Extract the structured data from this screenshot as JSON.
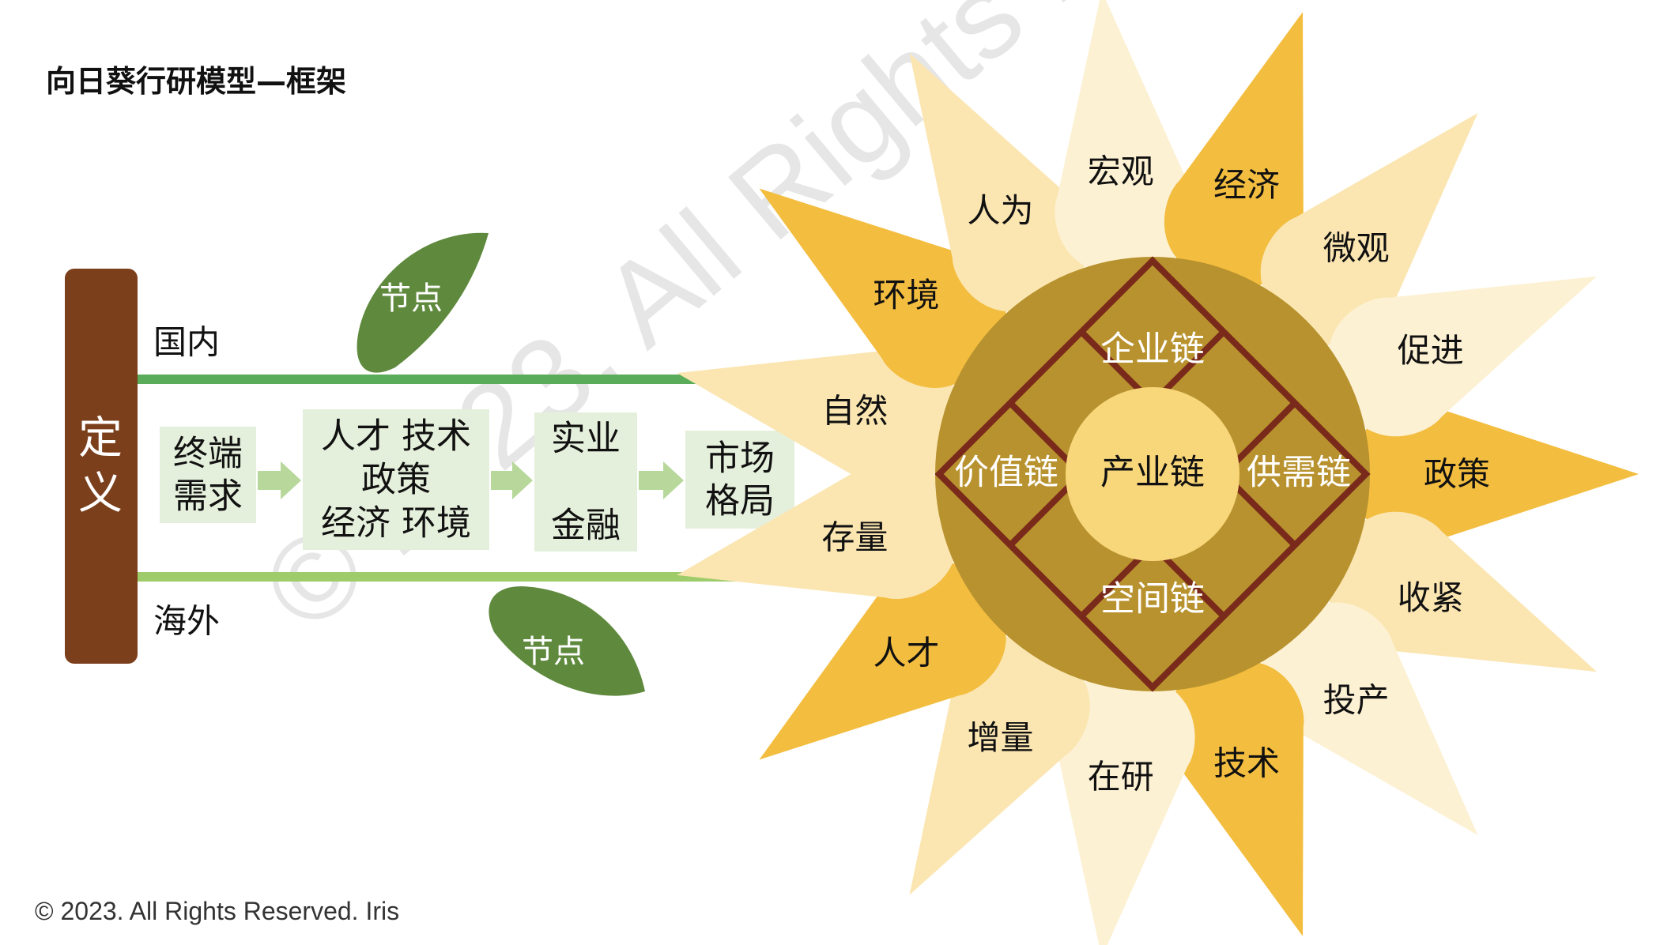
{
  "title": "向日葵行研模型—框架",
  "footer": "© 2023. All Rights Reserved. Iris",
  "watermark": "© 2023. All Rights Reserved. Iris",
  "colors": {
    "stem_bar": "#7b3f1c",
    "line_domestic": "#5aac5a",
    "line_overseas": "#9fcc6b",
    "box_fill": "#e5f0dc",
    "arrow": "#b7d89a",
    "leaf": "#5f8a3e",
    "petal_dark": "#f3bd3f",
    "petal_light": "#fbe6b2",
    "petal_pale": "#fdf1d3",
    "head": "#b8922e",
    "grid_line": "#7a2a1b",
    "center": "#f8d67a"
  },
  "left": {
    "definition": [
      "定",
      "义"
    ],
    "domestic": "国内",
    "overseas": "海外",
    "leaf_top": "节点",
    "leaf_bottom": "节点",
    "box1": [
      "终端",
      "需求"
    ],
    "box2": [
      "人才 技术",
      "政策",
      "经济 环境"
    ],
    "box3": [
      "实业",
      "金融"
    ],
    "box4": [
      "市场",
      "格局"
    ]
  },
  "chains": {
    "top": "企业链",
    "left": "价值链",
    "center": "产业链",
    "right": "供需链",
    "bottom": "空间链"
  },
  "petals": [
    {
      "label": "政策",
      "tone": "dark"
    },
    {
      "label": "收紧",
      "tone": "light"
    },
    {
      "label": "投产",
      "tone": "pale"
    },
    {
      "label": "技术",
      "tone": "dark"
    },
    {
      "label": "在研",
      "tone": "pale"
    },
    {
      "label": "增量",
      "tone": "light"
    },
    {
      "label": "人才",
      "tone": "dark"
    },
    {
      "label": "存量",
      "tone": "light"
    },
    {
      "label": "自然",
      "tone": "light"
    },
    {
      "label": "环境",
      "tone": "dark"
    },
    {
      "label": "人为",
      "tone": "light"
    },
    {
      "label": "宏观",
      "tone": "pale"
    },
    {
      "label": "经济",
      "tone": "dark"
    },
    {
      "label": "微观",
      "tone": "light"
    },
    {
      "label": "促进",
      "tone": "pale"
    }
  ]
}
